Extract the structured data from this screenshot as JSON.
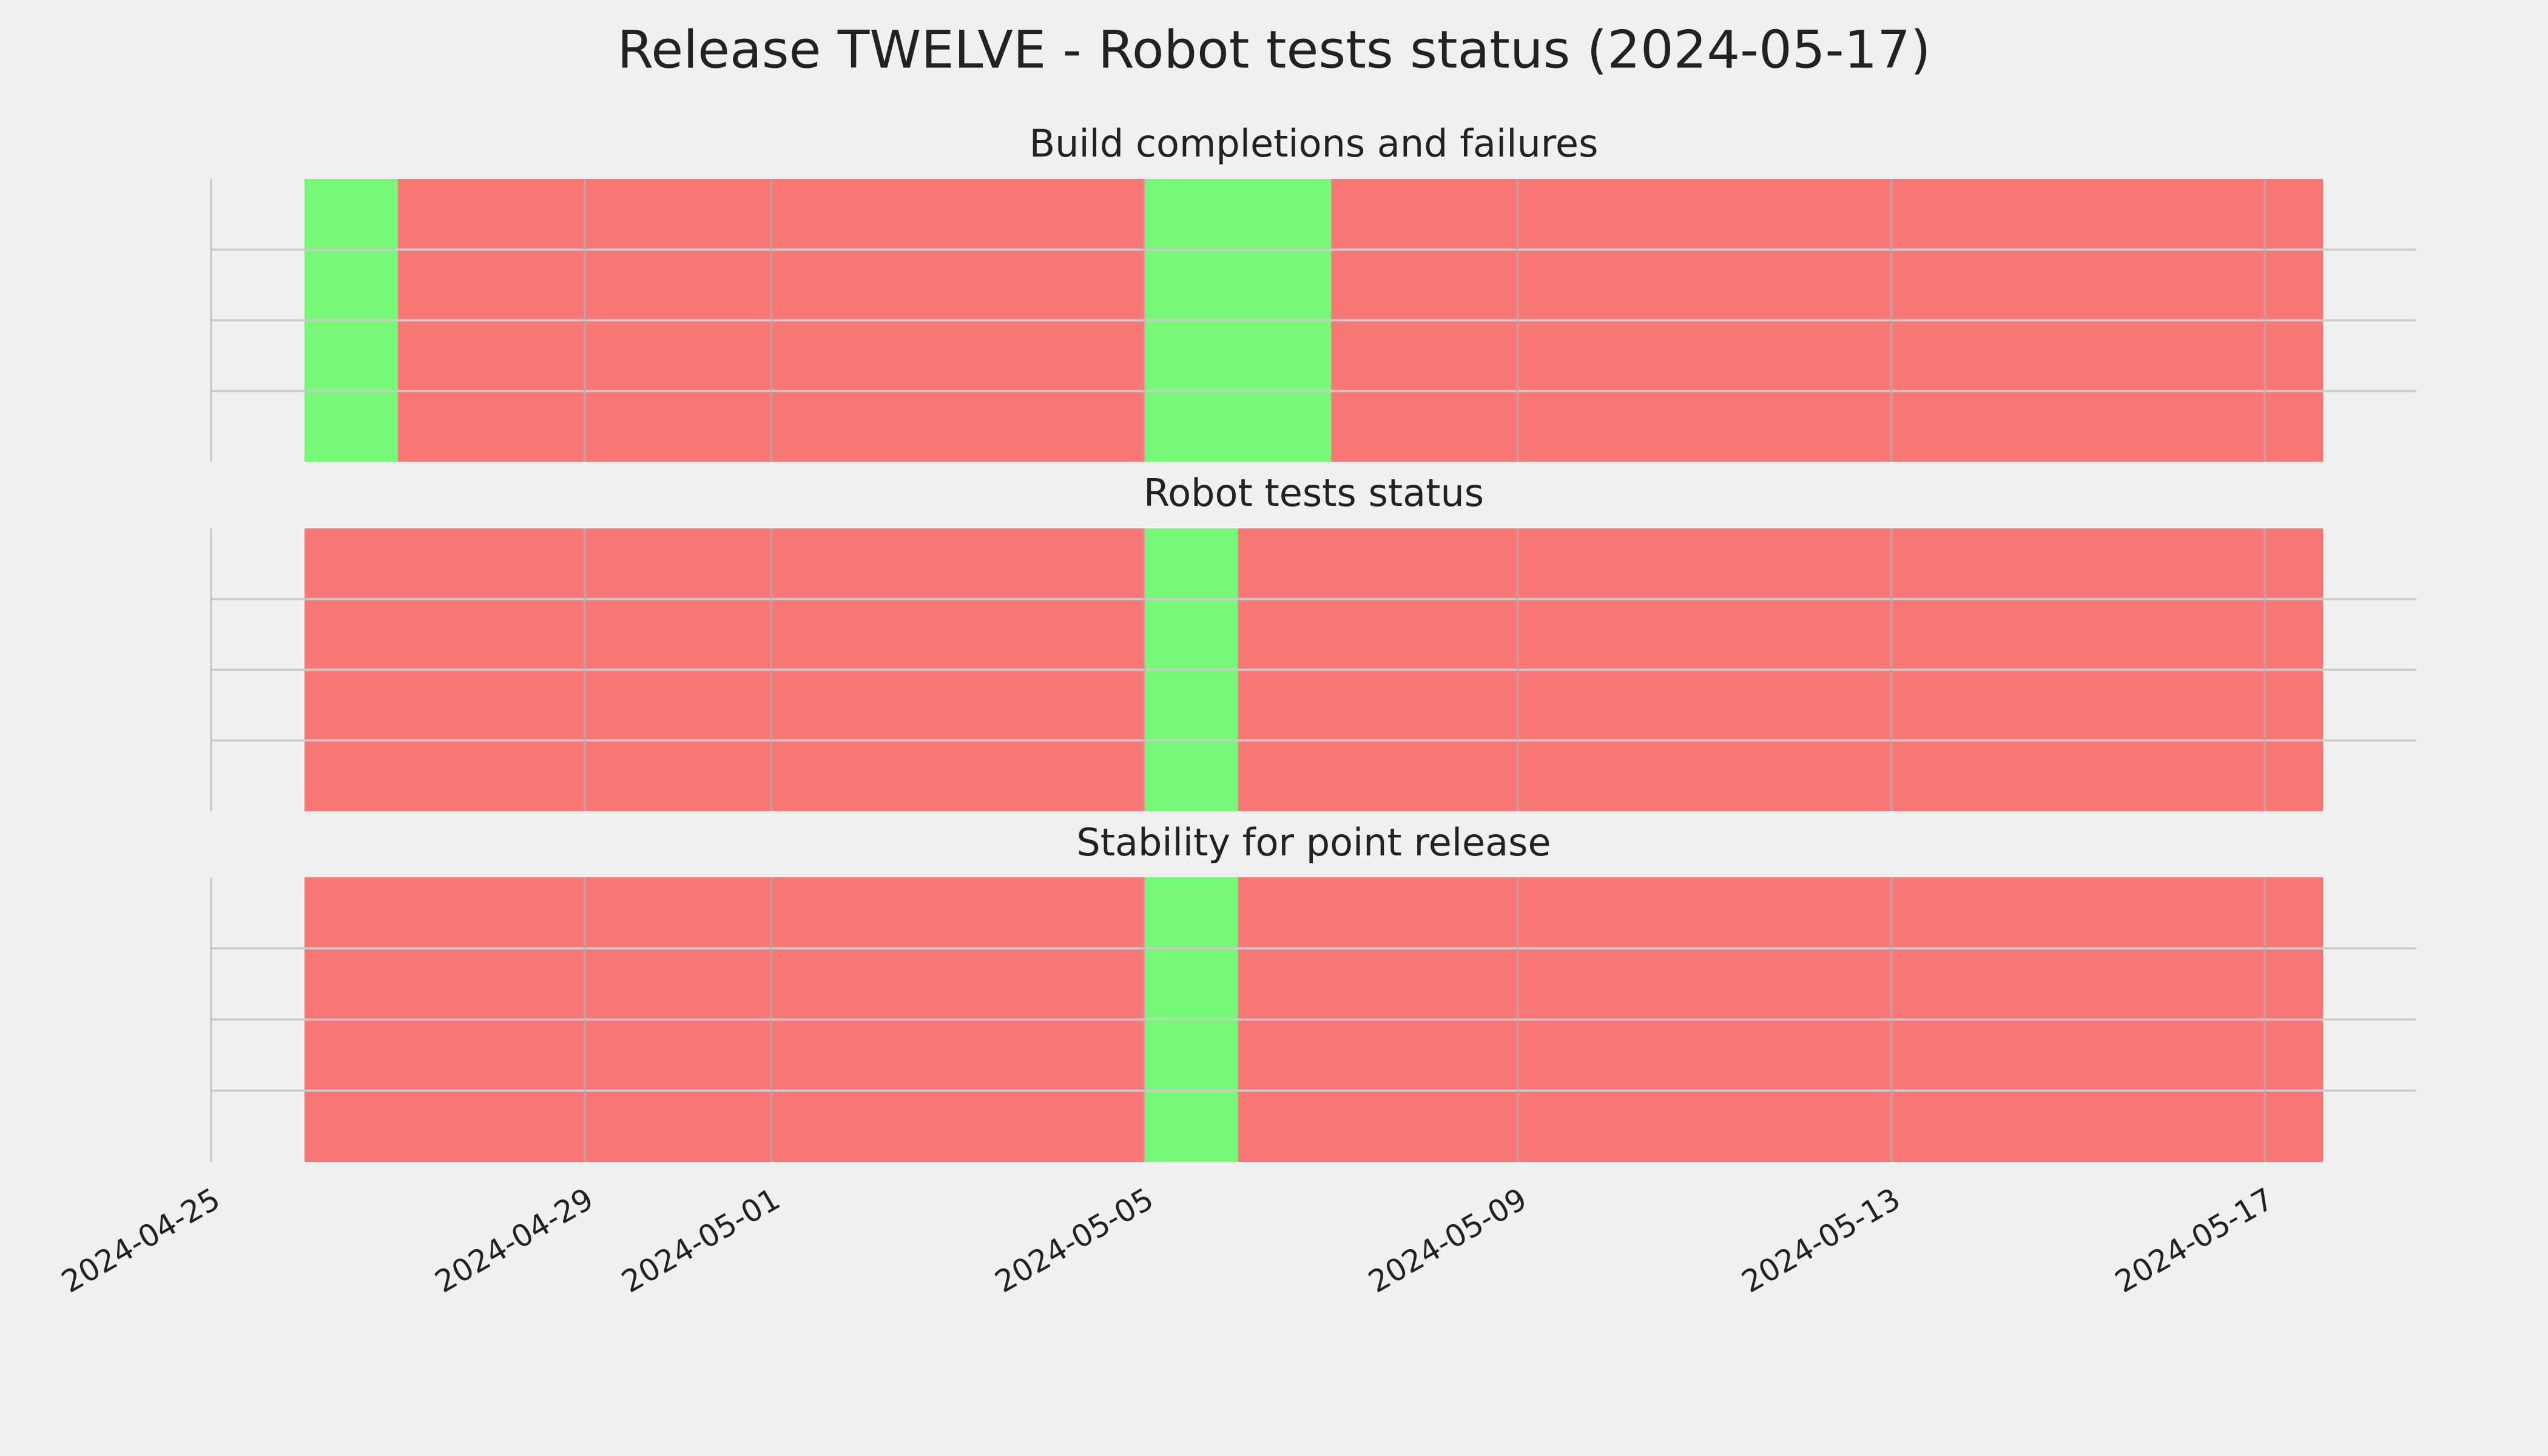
{
  "title": "Release TWELVE - Robot tests status (2024-05-17)",
  "chart_data": [
    {
      "type": "span",
      "title": "Build completions and failures",
      "xlim": [
        "2024-04-25",
        "2024-05-18T15:00"
      ],
      "ylim": [
        0,
        1
      ],
      "xticks": [
        "2024-04-25",
        "2024-04-29",
        "2024-05-01",
        "2024-05-05",
        "2024-05-09",
        "2024-05-13",
        "2024-05-17"
      ],
      "yticks": [
        0.25,
        0.5,
        0.75
      ],
      "grid": true,
      "alpha": 0.5,
      "spans": [
        {
          "start": "2024-04-26",
          "end": "2024-04-27",
          "color": "#00ff00"
        },
        {
          "start": "2024-04-27",
          "end": "2024-05-05",
          "color": "#ff0000"
        },
        {
          "start": "2024-05-05",
          "end": "2024-05-07",
          "color": "#00ff00"
        },
        {
          "start": "2024-05-07",
          "end": "2024-05-17T15:00",
          "color": "#ff0000"
        }
      ]
    },
    {
      "type": "span",
      "title": "Robot tests status",
      "xlim": [
        "2024-04-25",
        "2024-05-18T15:00"
      ],
      "ylim": [
        0,
        1
      ],
      "xticks": [
        "2024-04-25",
        "2024-04-29",
        "2024-05-01",
        "2024-05-05",
        "2024-05-09",
        "2024-05-13",
        "2024-05-17"
      ],
      "yticks": [
        0.25,
        0.5,
        0.75
      ],
      "grid": true,
      "alpha": 0.5,
      "spans": [
        {
          "start": "2024-04-26",
          "end": "2024-05-05",
          "color": "#ff0000"
        },
        {
          "start": "2024-05-05",
          "end": "2024-05-06",
          "color": "#00ff00"
        },
        {
          "start": "2024-05-06",
          "end": "2024-05-17T15:00",
          "color": "#ff0000"
        }
      ]
    },
    {
      "type": "span",
      "title": "Stability for point release",
      "xlim": [
        "2024-04-25",
        "2024-05-18T15:00"
      ],
      "ylim": [
        0,
        1
      ],
      "xticks": [
        "2024-04-25",
        "2024-04-29",
        "2024-05-01",
        "2024-05-05",
        "2024-05-09",
        "2024-05-13",
        "2024-05-17"
      ],
      "yticks": [
        0.25,
        0.5,
        0.75
      ],
      "grid": true,
      "alpha": 0.5,
      "spans": [
        {
          "start": "2024-04-26",
          "end": "2024-05-05",
          "color": "#ff0000"
        },
        {
          "start": "2024-05-05",
          "end": "2024-05-06",
          "color": "#00ff00"
        },
        {
          "start": "2024-05-06",
          "end": "2024-05-17T15:00",
          "color": "#ff0000"
        }
      ]
    }
  ]
}
